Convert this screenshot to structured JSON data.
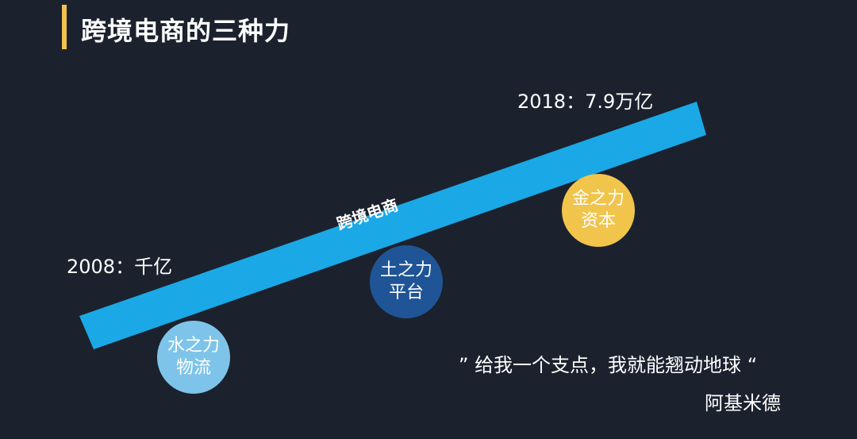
{
  "title": "跨境电商的三种力",
  "band_label": "跨境电商",
  "start_label": "2008：千亿",
  "end_label": "2018：7.9万亿",
  "circles": [
    {
      "line1": "水之力",
      "line2": "物流",
      "color": "#7ec4ea"
    },
    {
      "line1": "土之力",
      "line2": "平台",
      "color": "#1f5596"
    },
    {
      "line1": "金之力",
      "line2": "资本",
      "color": "#f1c44c"
    }
  ],
  "quote": "” 给我一个支点，我就能翘动地球 “",
  "author": "阿基米德",
  "colors": {
    "background": "#1b222d",
    "band": "#1ba8e6",
    "accent": "#f2c14e"
  }
}
